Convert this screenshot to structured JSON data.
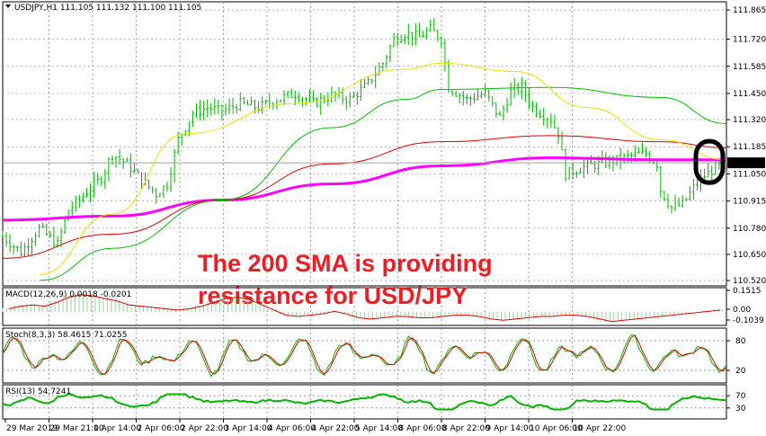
{
  "chart_data": {
    "type": "candlestick",
    "symbol": "USDJPY,H1",
    "main_title": "USDJPY,H1  111.105 111.132 111.100 111.105",
    "current_price": "111.105",
    "annotation": [
      "The 200 SMA is providing",
      "resistance for USD/JPY"
    ],
    "price_axis": {
      "range": [
        110.52,
        111.87
      ],
      "ticks": [
        "111.865",
        "111.720",
        "111.585",
        "111.450",
        "111.320",
        "111.185",
        "111.050",
        "110.915",
        "110.780",
        "110.650",
        "110.520"
      ]
    },
    "time_axis": {
      "ticks": [
        "29 Mar 2019",
        "29 Mar 21:00",
        "1 Apr 14:00",
        "2 Apr 06:00",
        "2 Apr 22:00",
        "3 Apr 14:00",
        "4 Apr 06:00",
        "4 Apr 22:00",
        "5 Apr 14:00",
        "8 Apr 06:00",
        "8 Apr 22:00",
        "9 Apr 14:00",
        "10 Apr 06:00",
        "10 Apr 22:00"
      ]
    },
    "price_path": [
      [
        0,
        110.74
      ],
      [
        5,
        110.66
      ],
      [
        10,
        110.78
      ],
      [
        15,
        110.7
      ],
      [
        18,
        110.87
      ],
      [
        21,
        110.92
      ],
      [
        24,
        110.98
      ],
      [
        27,
        111.03
      ],
      [
        30,
        111.15
      ],
      [
        34,
        111.1
      ],
      [
        38,
        111.02
      ],
      [
        42,
        110.95
      ],
      [
        45,
        111.0
      ],
      [
        48,
        111.22
      ],
      [
        52,
        111.35
      ],
      [
        56,
        111.38
      ],
      [
        60,
        111.36
      ],
      [
        65,
        111.4
      ],
      [
        70,
        111.38
      ],
      [
        75,
        111.42
      ],
      [
        80,
        111.45
      ],
      [
        85,
        111.4
      ],
      [
        90,
        111.44
      ],
      [
        95,
        111.42
      ],
      [
        100,
        111.5
      ],
      [
        104,
        111.6
      ],
      [
        107,
        111.72
      ],
      [
        110,
        111.75
      ],
      [
        114,
        111.73
      ],
      [
        117,
        111.77
      ],
      [
        120,
        111.72
      ],
      [
        122,
        111.48
      ],
      [
        127,
        111.42
      ],
      [
        132,
        111.45
      ],
      [
        136,
        111.33
      ],
      [
        139,
        111.46
      ],
      [
        142,
        111.48
      ],
      [
        145,
        111.38
      ],
      [
        150,
        111.32
      ],
      [
        152,
        111.25
      ],
      [
        154,
        111.05
      ],
      [
        158,
        111.08
      ],
      [
        163,
        111.1
      ],
      [
        168,
        111.12
      ],
      [
        172,
        111.14
      ],
      [
        176,
        111.15
      ],
      [
        179,
        111.1
      ],
      [
        180,
        110.97
      ],
      [
        183,
        110.88
      ],
      [
        186,
        110.9
      ],
      [
        189,
        110.98
      ],
      [
        192,
        111.04
      ],
      [
        195,
        111.08
      ],
      [
        198,
        111.1
      ]
    ],
    "series": [
      {
        "name": "200 SMA",
        "color": "#ff00ff",
        "points": [
          [
            0,
            110.82
          ],
          [
            30,
            110.84
          ],
          [
            60,
            110.92
          ],
          [
            90,
            111.0
          ],
          [
            120,
            111.09
          ],
          [
            150,
            111.13
          ],
          [
            180,
            111.12
          ],
          [
            198,
            111.12
          ]
        ]
      },
      {
        "color": "#e00000",
        "points": [
          [
            0,
            110.63
          ],
          [
            30,
            110.75
          ],
          [
            60,
            110.92
          ],
          [
            90,
            111.1
          ],
          [
            120,
            111.21
          ],
          [
            150,
            111.24
          ],
          [
            180,
            111.21
          ],
          [
            198,
            111.18
          ]
        ]
      },
      {
        "color": "#00c000",
        "points": [
          [
            10,
            110.52
          ],
          [
            30,
            110.68
          ],
          [
            60,
            110.92
          ],
          [
            90,
            111.28
          ],
          [
            110,
            111.42
          ],
          [
            120,
            111.47
          ],
          [
            150,
            111.48
          ],
          [
            180,
            111.43
          ],
          [
            198,
            111.3
          ]
        ]
      },
      {
        "color": "#e6e600",
        "points": [
          [
            10,
            110.55
          ],
          [
            30,
            110.85
          ],
          [
            50,
            111.25
          ],
          [
            80,
            111.4
          ],
          [
            110,
            111.57
          ],
          [
            120,
            111.6
          ],
          [
            140,
            111.56
          ],
          [
            160,
            111.38
          ],
          [
            180,
            111.22
          ],
          [
            198,
            111.12
          ]
        ]
      }
    ],
    "panels": [
      {
        "label": "MACD(12,26,9) 0.0018 -0.0201",
        "ticks": [
          "0.1515",
          "0.00",
          "-0.1039"
        ]
      },
      {
        "label": "Stoch(8,3,3) 58.4615 71.0255",
        "ticks": [
          "80",
          "20"
        ]
      },
      {
        "label": "RSI(13) 54.7241",
        "ticks": [
          "70",
          "30"
        ]
      }
    ],
    "macd_values": [
      0.03,
      0.05,
      0.06,
      0.05,
      0.08,
      0.12,
      0.14,
      0.13,
      0.11,
      0.09,
      0.06,
      0.05,
      0.04,
      0.03,
      0.02,
      0.03,
      0.05,
      0.08,
      0.11,
      0.12,
      0.1,
      0.06,
      0.02,
      -0.02,
      -0.03,
      -0.02,
      -0.01,
      0.01,
      -0.01,
      -0.04,
      -0.05,
      -0.04,
      -0.03,
      -0.03,
      -0.04,
      -0.04,
      -0.03,
      -0.02,
      -0.02,
      -0.03,
      -0.05,
      -0.06,
      -0.05,
      -0.04,
      -0.03,
      -0.03,
      -0.02,
      -0.02,
      -0.03,
      -0.05,
      -0.07,
      -0.06,
      -0.05,
      -0.04,
      -0.03,
      -0.02,
      -0.01,
      0.0,
      0.01,
      0.02
    ]
  }
}
